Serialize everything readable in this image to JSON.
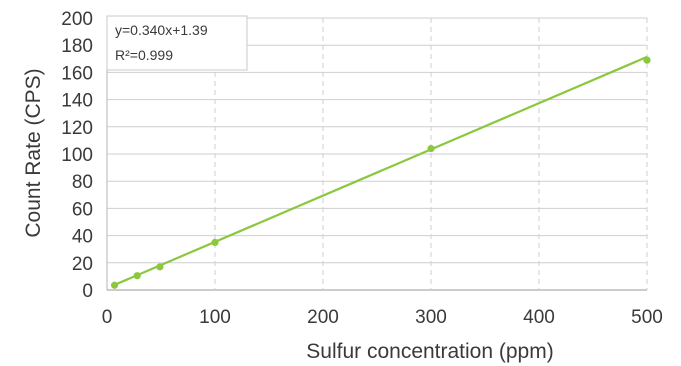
{
  "chart_data": {
    "type": "scatter",
    "title": "",
    "xlabel": "Sulfur concentration (ppm)",
    "ylabel": "Count Rate (CPS)",
    "xlim": [
      0,
      500
    ],
    "ylim": [
      0,
      200
    ],
    "x_ticks": [
      "0",
      "100",
      "200",
      "300",
      "400",
      "500"
    ],
    "y_ticks": [
      "0",
      "20",
      "40",
      "60",
      "80",
      "100",
      "120",
      "140",
      "160",
      "180",
      "200"
    ],
    "grid": {
      "horizontal": true,
      "vertical": true,
      "vertical_style": "dashed"
    },
    "points": [
      {
        "x": 7,
        "y": 3.5
      },
      {
        "x": 28,
        "y": 10.5
      },
      {
        "x": 49,
        "y": 17
      },
      {
        "x": 100,
        "y": 35
      },
      {
        "x": 300,
        "y": 104
      },
      {
        "x": 500,
        "y": 169
      }
    ],
    "fit": {
      "slope": 0.34,
      "intercept": 1.39
    },
    "annotations": {
      "equation": "y=0.340x+1.39",
      "r_squared": "R²=0.999"
    },
    "colors": {
      "series": "#8dc63f",
      "grid": "#cfcfcf",
      "text": "#3a3a3a"
    }
  }
}
